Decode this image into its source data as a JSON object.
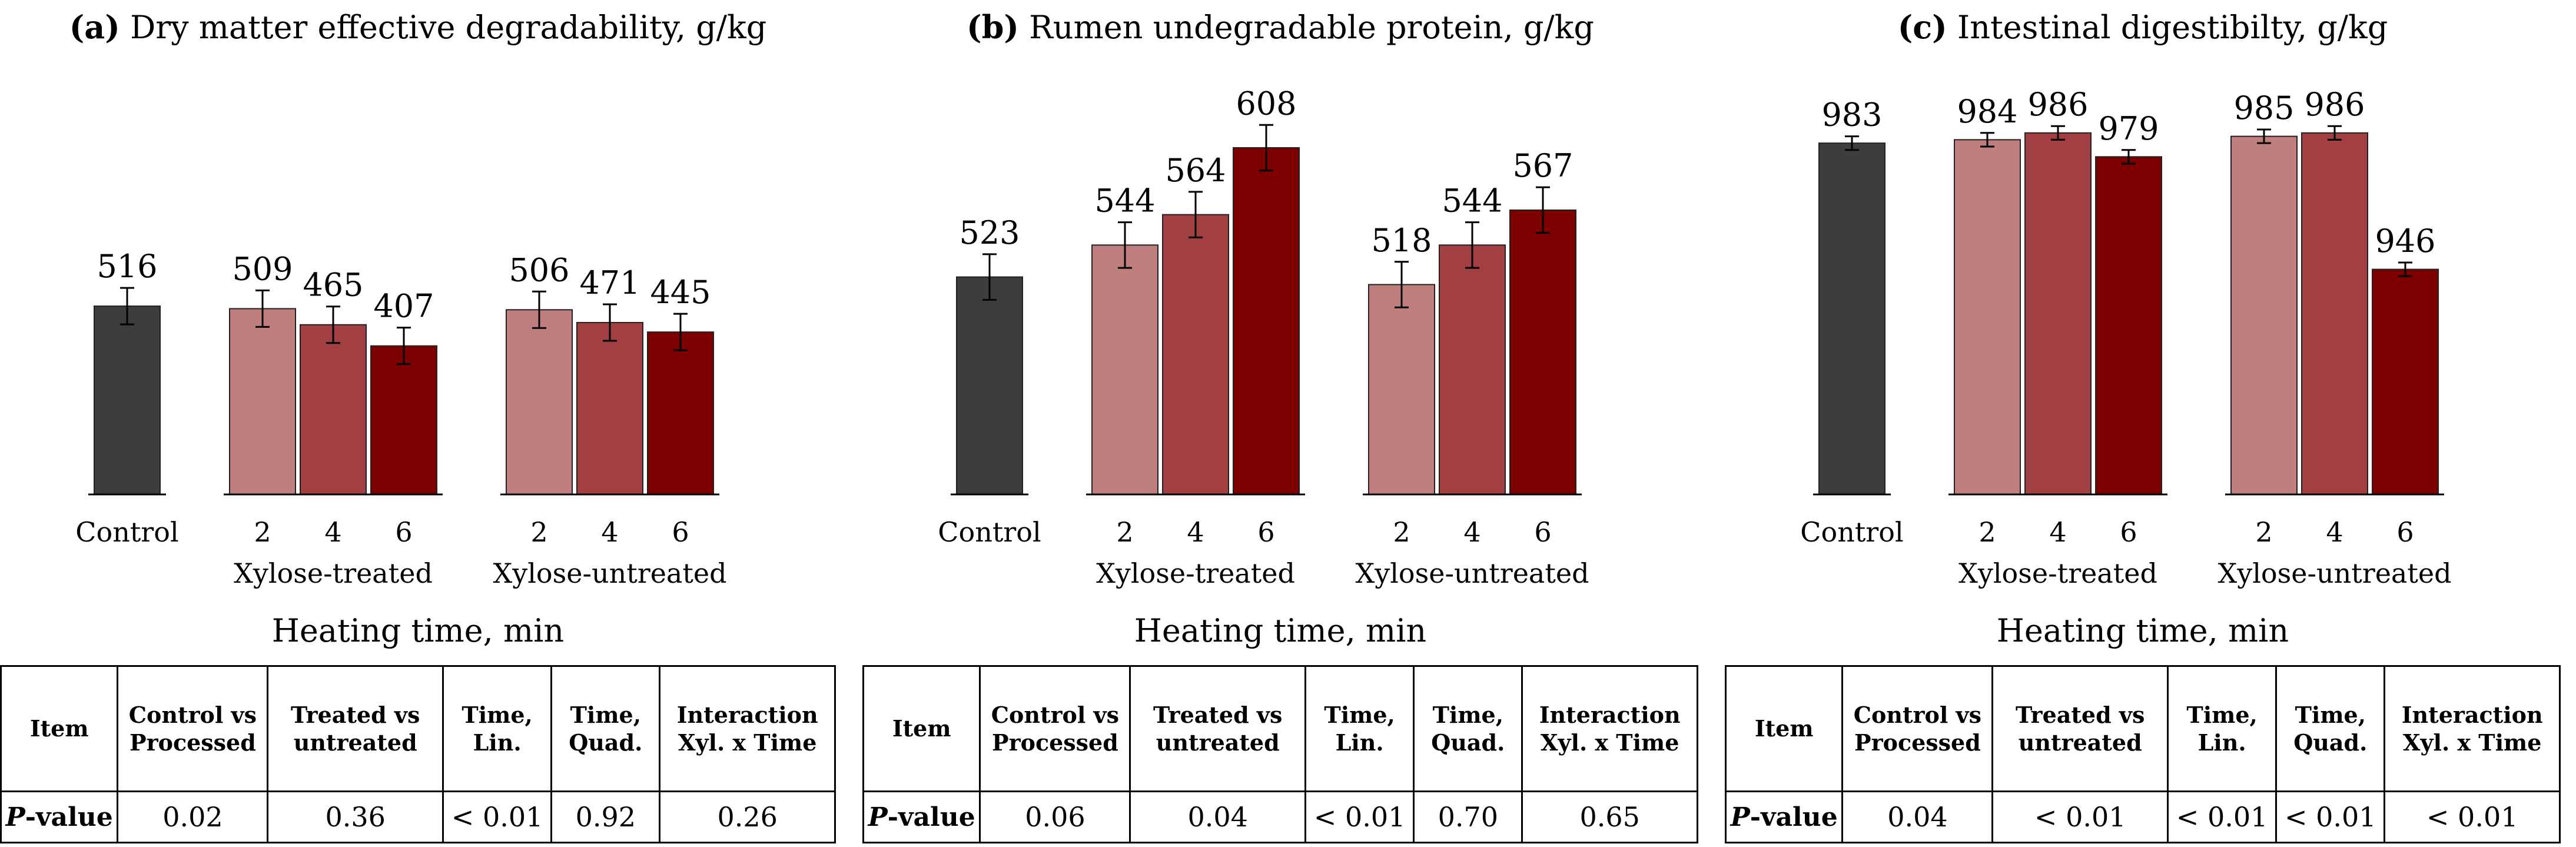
{
  "colors": {
    "control": "#3d3d3d",
    "t2": "#c07f7f",
    "t4": "#a23f42",
    "t6": "#7d0000",
    "axis": "#000000"
  },
  "x_axis_title": "Heating time, min",
  "table_headers": [
    "Item",
    "Control vs Processed",
    "Treated vs untreated",
    "Time, Lin.",
    "Time, Quad.",
    "Interaction Xyl. x Time"
  ],
  "table_row_label_bold": "P",
  "table_row_label_rest": "-value",
  "chart_data": [
    {
      "type": "bar",
      "title_letter": "(a)",
      "title": "Dry matter effective degradability, g/kg",
      "xlabel": "Heating time, min",
      "ylim": [
        0,
        1000
      ],
      "groups": [
        {
          "name": "Control",
          "bars": [
            {
              "tick": "Control",
              "value": 516,
              "err": 50,
              "color_key": "control"
            }
          ]
        },
        {
          "name": "Xylose-treated",
          "bars": [
            {
              "tick": "2",
              "value": 509,
              "err": 50,
              "color_key": "t2"
            },
            {
              "tick": "4",
              "value": 465,
              "err": 50,
              "color_key": "t4"
            },
            {
              "tick": "6",
              "value": 407,
              "err": 50,
              "color_key": "t6"
            }
          ]
        },
        {
          "name": "Xylose-untreated",
          "bars": [
            {
              "tick": "2",
              "value": 506,
              "err": 50,
              "color_key": "t2"
            },
            {
              "tick": "4",
              "value": 471,
              "err": 50,
              "color_key": "t4"
            },
            {
              "tick": "6",
              "value": 445,
              "err": 50,
              "color_key": "t6"
            }
          ]
        }
      ],
      "pvalues": [
        "0.02",
        "0.36",
        "< 0.01",
        "0.92",
        "0.26"
      ]
    },
    {
      "type": "bar",
      "title_letter": "(b)",
      "title": "Rumen undegradable protein, g/kg",
      "xlabel": "Heating time, min",
      "ylim": [
        380,
        620
      ],
      "groups": [
        {
          "name": "Control",
          "bars": [
            {
              "tick": "Control",
              "value": 523,
              "err": 15,
              "color_key": "control"
            }
          ]
        },
        {
          "name": "Xylose-treated",
          "bars": [
            {
              "tick": "2",
              "value": 544,
              "err": 15,
              "color_key": "t2"
            },
            {
              "tick": "4",
              "value": 564,
              "err": 15,
              "color_key": "t4"
            },
            {
              "tick": "6",
              "value": 608,
              "err": 15,
              "color_key": "t6"
            }
          ]
        },
        {
          "name": "Xylose-untreated",
          "bars": [
            {
              "tick": "2",
              "value": 518,
              "err": 15,
              "color_key": "t2"
            },
            {
              "tick": "4",
              "value": 544,
              "err": 15,
              "color_key": "t4"
            },
            {
              "tick": "6",
              "value": 567,
              "err": 15,
              "color_key": "t6"
            }
          ]
        }
      ],
      "pvalues": [
        "0.06",
        "0.04",
        "< 0.01",
        "0.70",
        "0.65"
      ]
    },
    {
      "type": "bar",
      "title_letter": "(c)",
      "title": "Intestinal digestibilty, g/kg",
      "xlabel": "Heating time, min",
      "ylim": [
        880,
        987
      ],
      "groups": [
        {
          "name": "Control",
          "bars": [
            {
              "tick": "Control",
              "value": 983,
              "err": 2,
              "color_key": "control"
            }
          ]
        },
        {
          "name": "Xylose-treated",
          "bars": [
            {
              "tick": "2",
              "value": 984,
              "err": 2,
              "color_key": "t2"
            },
            {
              "tick": "4",
              "value": 986,
              "err": 2,
              "color_key": "t4"
            },
            {
              "tick": "6",
              "value": 979,
              "err": 2,
              "color_key": "t6"
            }
          ]
        },
        {
          "name": "Xylose-untreated",
          "bars": [
            {
              "tick": "2",
              "value": 985,
              "err": 2,
              "color_key": "t2"
            },
            {
              "tick": "4",
              "value": 986,
              "err": 2,
              "color_key": "t4"
            },
            {
              "tick": "6",
              "value": 946,
              "err": 2,
              "color_key": "t6"
            }
          ]
        }
      ],
      "pvalues": [
        "0.04",
        "< 0.01",
        "< 0.01",
        "< 0.01",
        "< 0.01"
      ]
    }
  ]
}
